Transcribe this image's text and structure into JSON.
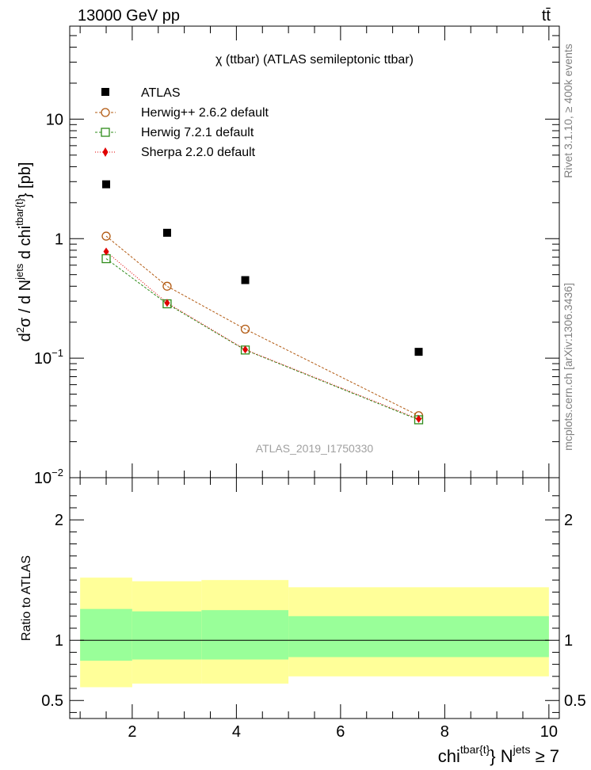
{
  "header": {
    "energy_label": "13000 GeV pp",
    "process_label": "tt̄"
  },
  "side_labels": {
    "rivet": "Rivet 3.1.10, ≥ 400k events",
    "mcplots": "mcplots.cern.ch [arXiv:1306.3436]"
  },
  "watermark": "ATLAS_2019_I1750330",
  "colors": {
    "atlas": "#000000",
    "herwigpp": "#b25a12",
    "herwig7": "#2e8b1a",
    "sherpa": "#e00000",
    "band_outer": "#ffff99",
    "band_inner": "#99ff99"
  },
  "chart_data": [
    {
      "type": "scatter",
      "title": "χ (ttbar) (ATLAS semileptonic ttbar)",
      "ylabel_parts": [
        "d",
        "2",
        "σ / d N",
        "jets",
        " d chi",
        "tbar{t}",
        "} [pb]"
      ],
      "yscale": "log",
      "ylim": [
        0.01,
        60
      ],
      "xlim": [
        0.8,
        10.2
      ],
      "y_ticks": [
        {
          "value": 0.01,
          "base": "10",
          "exp": "−2"
        },
        {
          "value": 0.1,
          "base": "10",
          "exp": "−1"
        },
        {
          "value": 1,
          "base": "1",
          "exp": ""
        },
        {
          "value": 10,
          "base": "10",
          "exp": ""
        }
      ],
      "x_bins": [
        [
          1,
          2
        ],
        [
          2,
          3.33
        ],
        [
          3.33,
          5
        ],
        [
          5,
          10
        ]
      ],
      "x": [
        1.5,
        2.67,
        4.17,
        7.5
      ],
      "series": [
        {
          "name": "ATLAS",
          "marker": "filled-square",
          "values": [
            2.85,
            1.12,
            0.45,
            0.113
          ]
        },
        {
          "name": "Herwig++ 2.6.2 default",
          "marker": "open-circle",
          "line": "dashed",
          "values": [
            1.05,
            0.4,
            0.175,
            0.033
          ]
        },
        {
          "name": "Herwig 7.2.1 default",
          "marker": "open-square",
          "line": "dashed",
          "values": [
            0.68,
            0.285,
            0.117,
            0.0305
          ]
        },
        {
          "name": "Sherpa 2.2.0 default",
          "marker": "filled-diamond",
          "line": "dotted",
          "values": [
            0.78,
            0.29,
            0.118,
            0.031
          ]
        }
      ]
    },
    {
      "type": "area",
      "ylabel": "Ratio to ATLAS",
      "ylim": [
        0.35,
        2.35
      ],
      "xlim": [
        0.8,
        10.2
      ],
      "y_ticks": [
        0.5,
        1,
        2
      ],
      "x_ticks": [
        2,
        4,
        6,
        8,
        10
      ],
      "xlabel_parts": [
        "chi",
        "tbar{t}",
        "} N",
        "jets",
        " ≥ 7"
      ],
      "reference": 1,
      "bands": [
        {
          "x0": 1,
          "x1": 2,
          "outer": [
            0.61,
            1.52
          ],
          "inner": [
            0.83,
            1.26
          ]
        },
        {
          "x0": 2,
          "x1": 3.33,
          "outer": [
            0.64,
            1.49
          ],
          "inner": [
            0.84,
            1.24
          ]
        },
        {
          "x0": 3.33,
          "x1": 5,
          "outer": [
            0.64,
            1.5
          ],
          "inner": [
            0.84,
            1.25
          ]
        },
        {
          "x0": 5,
          "x1": 10,
          "outer": [
            0.7,
            1.44
          ],
          "inner": [
            0.86,
            1.2
          ]
        }
      ]
    }
  ]
}
